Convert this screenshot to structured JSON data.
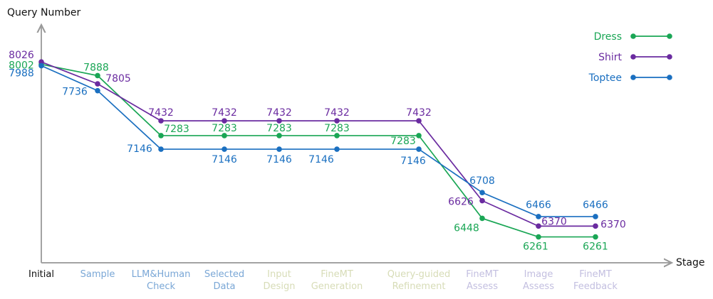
{
  "chart_data": {
    "type": "line",
    "title": "",
    "xlabel": "Stage",
    "ylabel": "Query Number",
    "categories": [
      "Initial",
      "Sample",
      "LLM&Human Check",
      "Selected Data",
      "Input Design",
      "FineMT Generation",
      "Query-guided Refinement",
      "FineMT Assess",
      "Image Assess",
      "FineMT Feedback"
    ],
    "category_colors": [
      "#111111",
      "#7aa7d6",
      "#7aa7d6",
      "#7aa7d6",
      "#d7dcb7",
      "#d7dcb7",
      "#d7dcb7",
      "#c3bfe0",
      "#c3bfe0",
      "#c3bfe0"
    ],
    "ylim": [
      6000,
      8400
    ],
    "series": [
      {
        "name": "Dress",
        "color": "#1aa655",
        "values": [
          8002,
          7888,
          7283,
          7283,
          7283,
          7283,
          7283,
          6448,
          6261,
          6261
        ]
      },
      {
        "name": "Shirt",
        "color": "#6a2ba0",
        "values": [
          8026,
          7805,
          7432,
          7432,
          7432,
          7432,
          7432,
          6626,
          6370,
          6370
        ]
      },
      {
        "name": "Toptee",
        "color": "#1a6fc0",
        "values": [
          7988,
          7736,
          7146,
          7146,
          7146,
          7146,
          7146,
          6708,
          6466,
          6466
        ]
      }
    ],
    "legend_position": "top-right",
    "grid": false
  }
}
